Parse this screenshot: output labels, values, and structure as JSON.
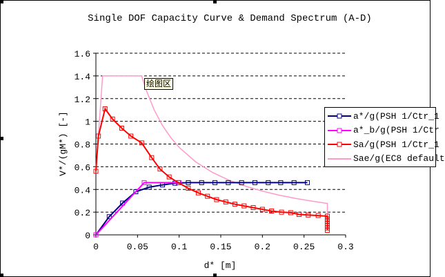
{
  "chart_data": {
    "type": "line",
    "title": "Single DOF Capacity Curve & Demand Spectrum (A-D)",
    "xlabel": "d* [m]",
    "ylabel": "V*/(gM*) [-]",
    "xlim": [
      0,
      0.3
    ],
    "ylim": [
      0,
      1.6
    ],
    "xticks": [
      "0",
      "0.05",
      "0.1",
      "0.15",
      "0.2",
      "0.25",
      "0.3"
    ],
    "yticks": [
      "0",
      "0.2",
      "0.4",
      "0.6",
      "0.8",
      "1",
      "1.2",
      "1.4",
      "1.6"
    ],
    "grid": "horizontal dashed",
    "legend_placement": "right",
    "tooltip": "绘图区",
    "series": [
      {
        "name": "a*/g(PSH 1/Ctr_1",
        "color": "#000080",
        "marker": "square",
        "x": [
          0,
          0.016,
          0.032,
          0.048,
          0.064,
          0.08,
          0.095,
          0.111,
          0.127,
          0.143,
          0.159,
          0.175,
          0.191,
          0.207,
          0.222,
          0.238,
          0.254
        ],
        "y": [
          0,
          0.16,
          0.28,
          0.38,
          0.42,
          0.44,
          0.455,
          0.46,
          0.46,
          0.46,
          0.46,
          0.46,
          0.46,
          0.46,
          0.46,
          0.46,
          0.46
        ]
      },
      {
        "name": "a*_b/g(PSH 1/Ctr",
        "color": "#ff00ff",
        "marker": "square",
        "x": [
          0,
          0.058,
          0.1
        ],
        "y": [
          0,
          0.46,
          0.46
        ]
      },
      {
        "name": "Sa/g(PSH 1/Ctr_1",
        "color": "#ff0000",
        "marker": "square",
        "x": [
          0,
          0.003,
          0.011,
          0.02,
          0.031,
          0.042,
          0.055,
          0.067,
          0.077,
          0.088,
          0.099,
          0.111,
          0.123,
          0.134,
          0.145,
          0.156,
          0.167,
          0.178,
          0.189,
          0.2,
          0.211,
          0.223,
          0.234,
          0.244,
          0.255,
          0.267,
          0.278,
          0.278,
          0.278,
          0.278,
          0.278,
          0.278,
          0.278
        ],
        "y": [
          0.56,
          0.87,
          1.11,
          1.02,
          0.94,
          0.87,
          0.81,
          0.68,
          0.58,
          0.51,
          0.46,
          0.41,
          0.37,
          0.34,
          0.31,
          0.29,
          0.27,
          0.255,
          0.24,
          0.225,
          0.21,
          0.2,
          0.195,
          0.18,
          0.175,
          0.17,
          0.165,
          0.14,
          0.12,
          0.1,
          0.08,
          0.06,
          0.04
        ]
      },
      {
        "name": "Sae/g(EC8 default",
        "color": "#ff99cc",
        "marker": "none",
        "x": [
          0,
          0.008,
          0.055,
          0.06,
          0.07,
          0.08,
          0.09,
          0.1,
          0.12,
          0.14,
          0.16,
          0.18,
          0.2,
          0.22,
          0.24,
          0.26,
          0.278,
          0.278
        ],
        "y": [
          0.56,
          1.4,
          1.4,
          1.283,
          1.1,
          0.963,
          0.856,
          0.77,
          0.642,
          0.55,
          0.481,
          0.428,
          0.385,
          0.35,
          0.321,
          0.296,
          0.277,
          0.165
        ]
      }
    ]
  }
}
